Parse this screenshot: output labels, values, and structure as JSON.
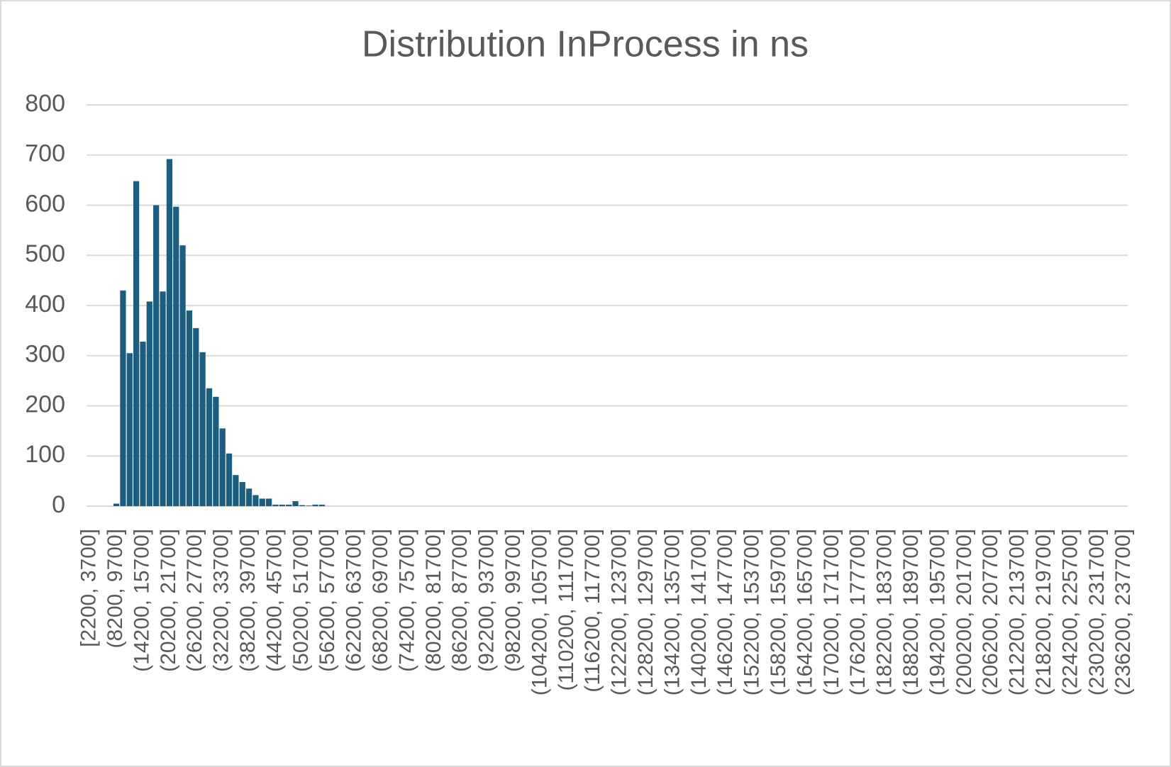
{
  "chart_data": {
    "type": "bar",
    "title": "Distribution InProcess in ns",
    "categories": [
      "[2200, 3700]",
      null,
      null,
      null,
      "(8200, 9700]",
      null,
      null,
      null,
      "(14200, 15700]",
      null,
      null,
      null,
      "(20200, 21700]",
      null,
      null,
      null,
      "(26200, 27700]",
      null,
      null,
      null,
      "(32200, 33700]",
      null,
      null,
      null,
      "(38200, 39700]",
      null,
      null,
      null,
      "(44200, 45700]",
      null,
      null,
      null,
      "(50200, 51700]",
      null,
      null,
      null,
      "(56200, 57700]",
      null,
      null,
      null,
      "(62200, 63700]",
      null,
      null,
      null,
      "(68200, 69700]",
      null,
      null,
      null,
      "(74200, 75700]",
      null,
      null,
      null,
      "(80200, 81700]",
      null,
      null,
      null,
      "(86200, 87700]",
      null,
      null,
      null,
      "(92200, 93700]",
      null,
      null,
      null,
      "(98200, 99700]",
      null,
      null,
      null,
      "(104200, 105700]",
      null,
      null,
      null,
      "(110200, 111700]",
      null,
      null,
      null,
      "(116200, 117700]",
      null,
      null,
      null,
      "(122200, 123700]",
      null,
      null,
      null,
      "(128200, 129700]",
      null,
      null,
      null,
      "(134200, 135700]",
      null,
      null,
      null,
      "(140200, 141700]",
      null,
      null,
      null,
      "(146200, 147700]",
      null,
      null,
      null,
      "(152200, 153700]",
      null,
      null,
      null,
      "(158200, 159700]",
      null,
      null,
      null,
      "(164200, 165700]",
      null,
      null,
      null,
      "(170200, 171700]",
      null,
      null,
      null,
      "(176200, 177700]",
      null,
      null,
      null,
      "(182200, 183700]",
      null,
      null,
      null,
      "(188200, 189700]",
      null,
      null,
      null,
      "(194200, 195700]",
      null,
      null,
      null,
      "(200200, 201700]",
      null,
      null,
      null,
      "(206200, 207700]",
      null,
      null,
      null,
      "(212200, 213700]",
      null,
      null,
      null,
      "(218200, 219700]",
      null,
      null,
      null,
      "(224200, 225700]",
      null,
      null,
      null,
      "(230200, 231700]",
      null,
      null,
      null,
      "(236200, 237700]"
    ],
    "values": [
      0,
      0,
      0,
      0,
      5,
      430,
      305,
      648,
      328,
      408,
      600,
      428,
      692,
      597,
      520,
      390,
      355,
      307,
      235,
      218,
      155,
      105,
      62,
      48,
      35,
      22,
      15,
      15,
      3,
      3,
      3,
      10,
      2,
      1,
      3,
      3,
      0,
      0,
      0,
      0,
      0,
      0,
      0,
      0,
      0,
      0,
      0,
      0,
      0,
      0,
      0,
      0,
      0,
      0,
      0,
      0,
      0,
      0,
      0,
      0,
      0,
      0,
      0,
      0,
      0,
      0,
      0,
      0,
      0,
      0,
      0,
      0,
      0,
      0,
      0,
      0,
      0,
      0,
      0,
      0,
      0,
      0,
      0,
      0,
      0,
      0,
      0,
      0,
      0,
      0,
      0,
      0,
      0,
      0,
      0,
      0,
      0,
      0,
      0,
      0,
      0,
      0,
      0,
      0,
      0,
      0,
      0,
      0,
      0,
      0,
      0,
      0,
      0,
      0,
      0,
      0,
      0,
      0,
      0,
      0,
      0,
      0,
      0,
      0,
      0,
      0,
      0,
      0,
      0,
      0,
      0,
      0,
      0,
      0,
      0,
      0,
      0,
      0,
      0,
      0,
      0,
      0,
      0,
      0,
      0,
      0,
      0,
      0,
      0,
      0,
      0,
      0,
      0,
      0,
      0,
      0,
      0
    ],
    "color": "#1b5e80",
    "ylim": [
      0,
      800
    ],
    "yticks": [
      0,
      100,
      200,
      300,
      400,
      500,
      600,
      700,
      800
    ],
    "grid": true
  }
}
